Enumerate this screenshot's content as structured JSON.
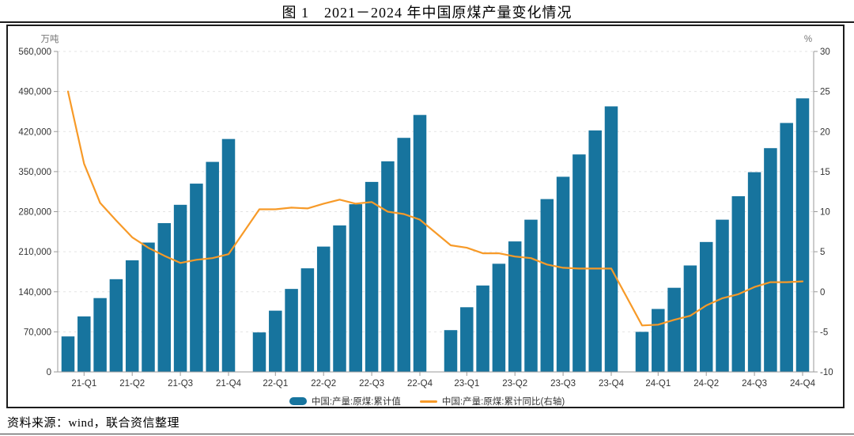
{
  "title": "图 1　2021－2024 年中国原煤产量变化情况",
  "source_note": "资料来源：wind，联合资信整理",
  "chart_data": {
    "type": "bar+line",
    "title": "图 1 2021－2024 年中国原煤产量变化情况",
    "grid": true,
    "legend_position": "bottom",
    "x_tick_labels": [
      "21-Q1",
      "21-Q2",
      "21-Q3",
      "21-Q4",
      "22-Q1",
      "22-Q2",
      "22-Q3",
      "22-Q4",
      "23-Q1",
      "23-Q2",
      "23-Q3",
      "23-Q4",
      "24-Q1",
      "24-Q2",
      "24-Q3",
      "24-Q4"
    ],
    "left_axis": {
      "unit_label": "万吨",
      "min": 0,
      "max": 560000,
      "step": 70000
    },
    "right_axis": {
      "unit_label": "%",
      "min": -10,
      "max": 30,
      "step": 5
    },
    "bar_series": {
      "name": "中国:产量:原煤:累计值",
      "color": "#17749e",
      "axis": "left",
      "groups": [
        {
          "year": "21",
          "values": [
            62000,
            97000,
            129000,
            162000,
            195000,
            226000,
            260000,
            292000,
            329000,
            367000,
            407000
          ]
        },
        {
          "year": "22",
          "values": [
            69000,
            107000,
            145000,
            181000,
            219000,
            256000,
            293000,
            332000,
            368000,
            409000,
            449000
          ]
        },
        {
          "year": "23",
          "values": [
            73000,
            113000,
            151000,
            189000,
            228000,
            266000,
            302000,
            341000,
            380000,
            422000,
            464000
          ]
        },
        {
          "year": "24",
          "values": [
            70000,
            110000,
            147000,
            186000,
            227000,
            266000,
            307000,
            349000,
            391000,
            435000,
            478000
          ]
        }
      ]
    },
    "line_series": {
      "name": "中国:产量:原煤:累计同比(右轴)",
      "color": "#f79a28",
      "axis": "right",
      "groups": [
        {
          "year": "21",
          "values": [
            25.0,
            16.0,
            11.1,
            8.9,
            6.8,
            5.5,
            4.5,
            3.6,
            4.0,
            4.2,
            4.7
          ]
        },
        {
          "year": "22",
          "values": [
            10.3,
            10.3,
            10.5,
            10.4,
            11.0,
            11.5,
            11.0,
            11.2,
            10.0,
            9.7,
            9.0
          ]
        },
        {
          "year": "23",
          "values": [
            5.8,
            5.5,
            4.8,
            4.8,
            4.4,
            4.2,
            3.4,
            3.0,
            2.9,
            2.9,
            2.9
          ]
        },
        {
          "year": "24",
          "values": [
            -4.2,
            -4.1,
            -3.5,
            -3.0,
            -1.7,
            -0.8,
            -0.3,
            0.6,
            1.2,
            1.2,
            1.3
          ]
        }
      ]
    },
    "legend": [
      {
        "kind": "bar",
        "label": "中国:产量:原煤:累计值",
        "color": "#17749e"
      },
      {
        "kind": "line",
        "label": "中国:产量:原煤:累计同比(右轴)",
        "color": "#f79a28"
      }
    ]
  }
}
